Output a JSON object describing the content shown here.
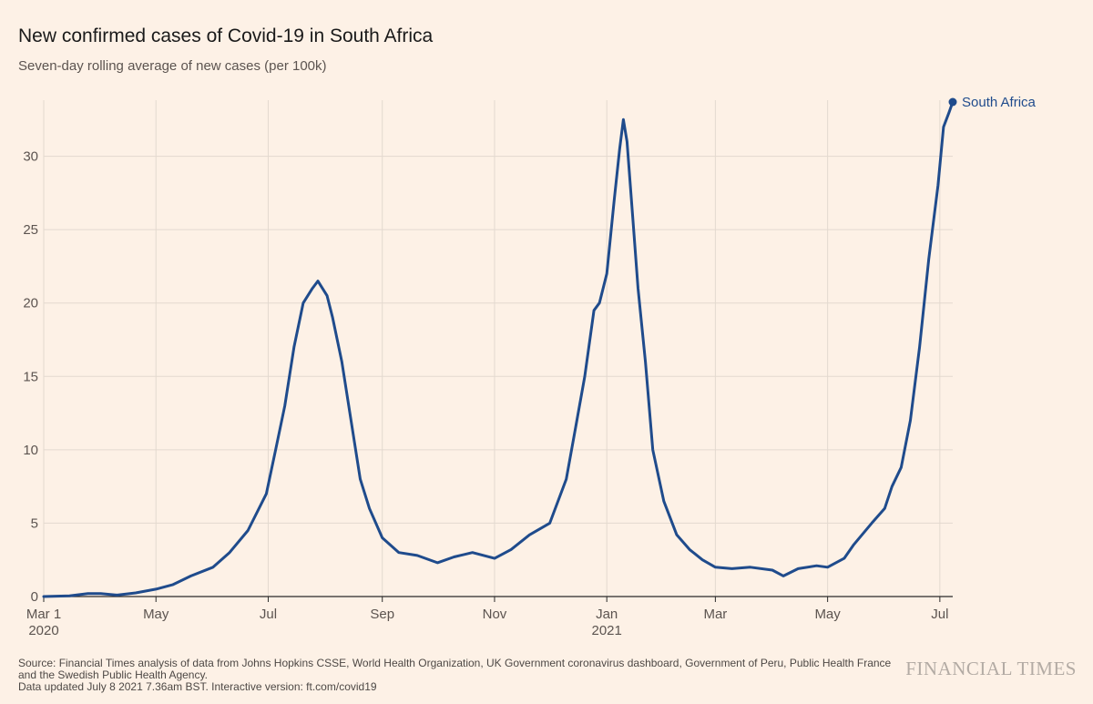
{
  "header": {
    "title": "New confirmed cases of Covid-19 in South Africa",
    "subtitle": "Seven-day rolling average of new cases (per 100k)"
  },
  "footer": {
    "source": "Source: Financial Times analysis of data from Johns Hopkins CSSE, World Health Organization, UK Government coronavirus dashboard, Government of Peru, Public Health France and the Swedish Public Health Agency.",
    "updated": "Data updated July 8 2021 7.36am BST. Interactive version: ft.com/covid19",
    "brand": "FINANCIAL TIMES"
  },
  "colors": {
    "background": "#fdf1e6",
    "line": "#1f4b8c",
    "grid": "#e3d9cf",
    "axis": "#2b2b2b",
    "text": "#5c5450"
  },
  "chart_data": {
    "type": "line",
    "title": "New confirmed cases of Covid-19 in South Africa",
    "subtitle": "Seven-day rolling average of new cases (per 100k)",
    "xlabel": "",
    "ylabel": "",
    "xlim": [
      "2020-03-01",
      "2021-07-08"
    ],
    "ylim": [
      0,
      33.7
    ],
    "grid": true,
    "legend": "direct label at line end (top-right)",
    "x_ticks": [
      {
        "date": "2020-03-01",
        "label": "Mar 1",
        "sublabel": "2020"
      },
      {
        "date": "2020-05-01",
        "label": "May"
      },
      {
        "date": "2020-07-01",
        "label": "Jul"
      },
      {
        "date": "2020-09-01",
        "label": "Sep"
      },
      {
        "date": "2020-11-01",
        "label": "Nov"
      },
      {
        "date": "2021-01-01",
        "label": "Jan",
        "sublabel": "2021"
      },
      {
        "date": "2021-03-01",
        "label": "Mar"
      },
      {
        "date": "2021-05-01",
        "label": "May"
      },
      {
        "date": "2021-07-01",
        "label": "Jul"
      }
    ],
    "y_ticks": [
      0,
      5,
      10,
      15,
      20,
      25,
      30
    ],
    "series": [
      {
        "name": "South Africa",
        "points": [
          [
            "2020-03-01",
            0
          ],
          [
            "2020-03-15",
            0.05
          ],
          [
            "2020-03-25",
            0.2
          ],
          [
            "2020-04-01",
            0.2
          ],
          [
            "2020-04-10",
            0.1
          ],
          [
            "2020-04-20",
            0.25
          ],
          [
            "2020-05-01",
            0.5
          ],
          [
            "2020-05-10",
            0.8
          ],
          [
            "2020-05-20",
            1.4
          ],
          [
            "2020-06-01",
            2.0
          ],
          [
            "2020-06-10",
            3.0
          ],
          [
            "2020-06-20",
            4.5
          ],
          [
            "2020-06-30",
            7.0
          ],
          [
            "2020-07-05",
            10.0
          ],
          [
            "2020-07-10",
            13.0
          ],
          [
            "2020-07-15",
            17.0
          ],
          [
            "2020-07-20",
            20.0
          ],
          [
            "2020-07-25",
            21.0
          ],
          [
            "2020-07-28",
            21.5
          ],
          [
            "2020-08-02",
            20.5
          ],
          [
            "2020-08-05",
            19.0
          ],
          [
            "2020-08-10",
            16.0
          ],
          [
            "2020-08-15",
            12.0
          ],
          [
            "2020-08-20",
            8.0
          ],
          [
            "2020-08-25",
            6.0
          ],
          [
            "2020-09-01",
            4.0
          ],
          [
            "2020-09-10",
            3.0
          ],
          [
            "2020-09-20",
            2.8
          ],
          [
            "2020-10-01",
            2.3
          ],
          [
            "2020-10-10",
            2.7
          ],
          [
            "2020-10-20",
            3.0
          ],
          [
            "2020-11-01",
            2.6
          ],
          [
            "2020-11-10",
            3.2
          ],
          [
            "2020-11-20",
            4.2
          ],
          [
            "2020-12-01",
            5.0
          ],
          [
            "2020-12-10",
            8.0
          ],
          [
            "2020-12-15",
            11.5
          ],
          [
            "2020-12-20",
            15.0
          ],
          [
            "2020-12-25",
            19.5
          ],
          [
            "2020-12-28",
            20.0
          ],
          [
            "2021-01-01",
            22.0
          ],
          [
            "2021-01-05",
            27.0
          ],
          [
            "2021-01-08",
            30.5
          ],
          [
            "2021-01-10",
            32.5
          ],
          [
            "2021-01-12",
            31.0
          ],
          [
            "2021-01-15",
            26.0
          ],
          [
            "2021-01-18",
            21.0
          ],
          [
            "2021-01-22",
            16.0
          ],
          [
            "2021-01-26",
            10.0
          ],
          [
            "2021-02-01",
            6.5
          ],
          [
            "2021-02-08",
            4.2
          ],
          [
            "2021-02-15",
            3.2
          ],
          [
            "2021-02-22",
            2.5
          ],
          [
            "2021-03-01",
            2.0
          ],
          [
            "2021-03-10",
            1.9
          ],
          [
            "2021-03-20",
            2.0
          ],
          [
            "2021-04-01",
            1.8
          ],
          [
            "2021-04-07",
            1.4
          ],
          [
            "2021-04-15",
            1.9
          ],
          [
            "2021-04-25",
            2.1
          ],
          [
            "2021-05-01",
            2.0
          ],
          [
            "2021-05-10",
            2.6
          ],
          [
            "2021-05-15",
            3.5
          ],
          [
            "2021-05-25",
            5.0
          ],
          [
            "2021-06-01",
            6.0
          ],
          [
            "2021-06-05",
            7.5
          ],
          [
            "2021-06-10",
            8.8
          ],
          [
            "2021-06-15",
            12.0
          ],
          [
            "2021-06-20",
            17.0
          ],
          [
            "2021-06-25",
            23.0
          ],
          [
            "2021-06-30",
            28.0
          ],
          [
            "2021-07-03",
            32.0
          ],
          [
            "2021-07-06",
            33.0
          ],
          [
            "2021-07-08",
            33.7
          ]
        ]
      }
    ]
  }
}
